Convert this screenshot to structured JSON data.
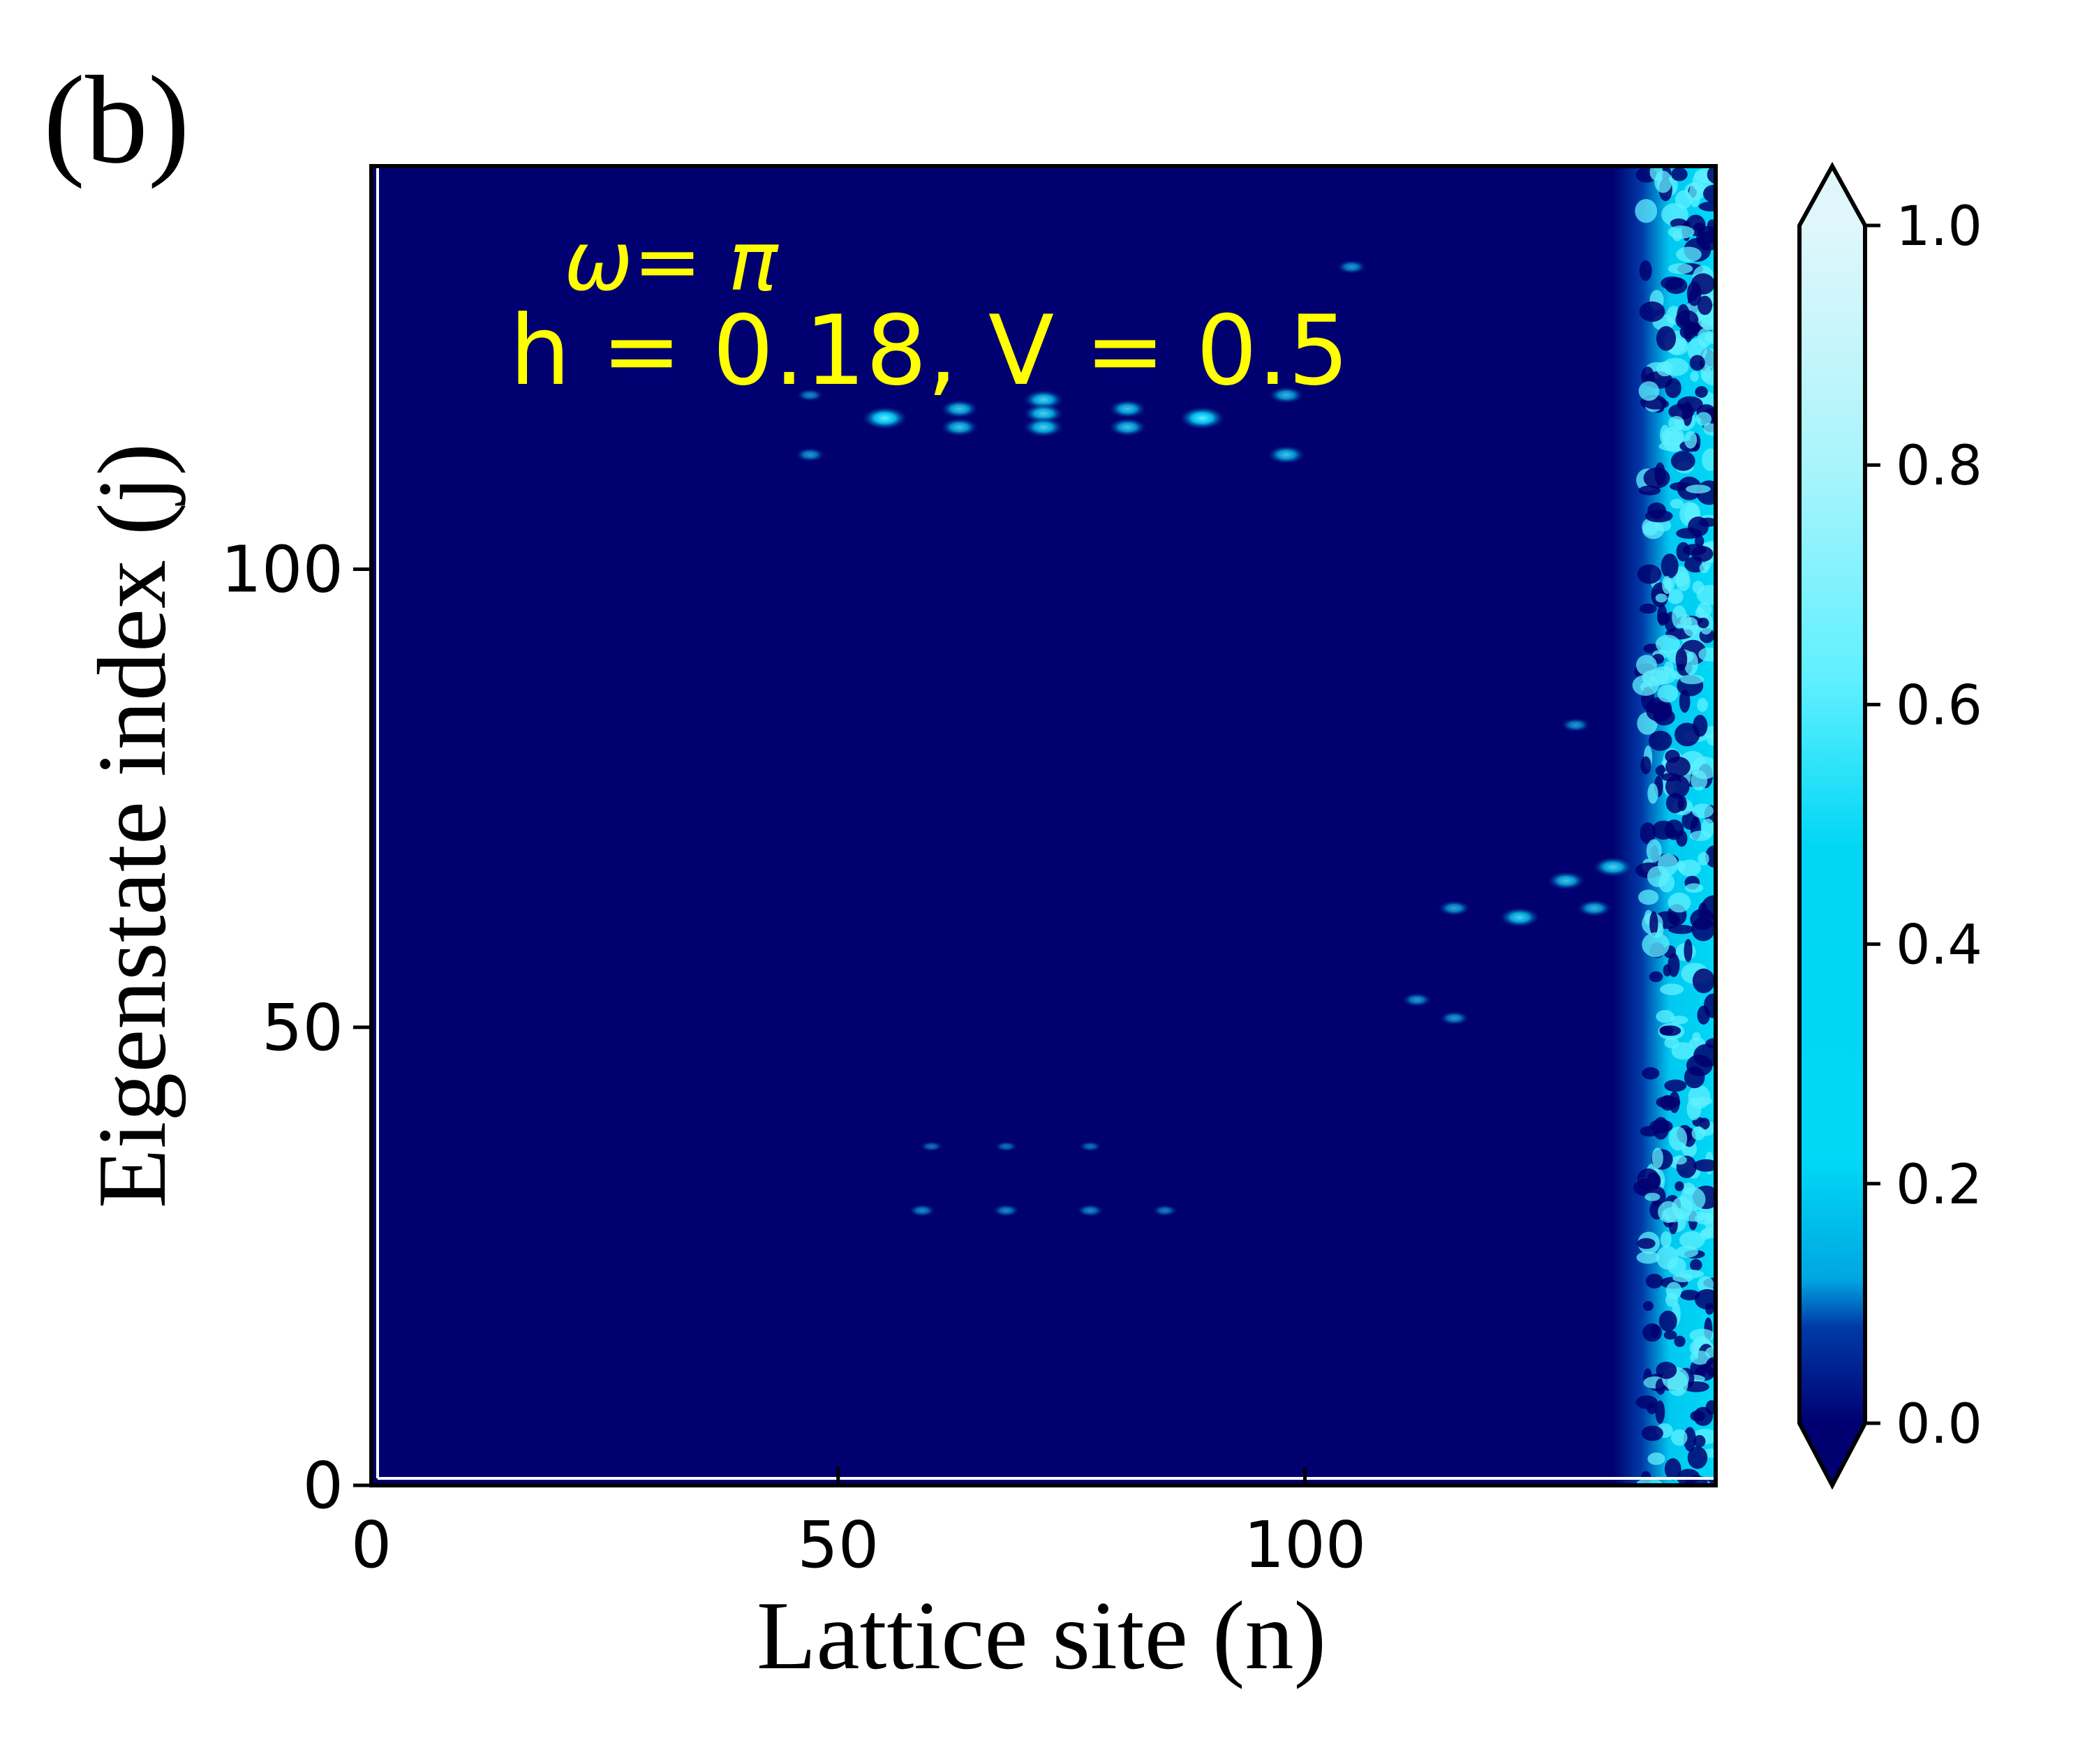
{
  "panel_label": "(b)",
  "annotations": {
    "omega_line": "ω= π",
    "params_line": "h = 0.18, V = 0.5"
  },
  "colors": {
    "background": "#000070",
    "annotation": "#ffff00",
    "cmap": [
      "#000070",
      "#003aa8",
      "#00a6e0",
      "#00d8f6",
      "#5ff0ff",
      "#dff7fb"
    ]
  },
  "chart_data": {
    "type": "heatmap",
    "xlabel": "Lattice site (n)",
    "ylabel": "Eigenstate index (j)",
    "xlim": [
      0,
      144
    ],
    "ylim": [
      0,
      144
    ],
    "xticks": [
      0,
      50,
      100
    ],
    "yticks": [
      0,
      50,
      100
    ],
    "colorbar": {
      "ticks": [
        0.0,
        0.2,
        0.4,
        0.6,
        0.8,
        1.0
      ],
      "tick_labels": [
        "0.0",
        "0.2",
        "0.4",
        "0.6",
        "0.8",
        "1.0"
      ],
      "extend": "both"
    },
    "edge_band": {
      "n_from": 133,
      "n_to": 144,
      "j_from": 0,
      "j_to": 144,
      "level": 0.45
    },
    "features": [
      {
        "n": 55,
        "j": 116.5,
        "value": 0.5
      },
      {
        "n": 63,
        "j": 117.5,
        "value": 0.35
      },
      {
        "n": 63,
        "j": 115.5,
        "value": 0.35
      },
      {
        "n": 72,
        "j": 118.5,
        "value": 0.4
      },
      {
        "n": 72,
        "j": 117,
        "value": 0.4
      },
      {
        "n": 72,
        "j": 115.5,
        "value": 0.4
      },
      {
        "n": 81,
        "j": 117.5,
        "value": 0.35
      },
      {
        "n": 81,
        "j": 115.5,
        "value": 0.35
      },
      {
        "n": 89,
        "j": 116.5,
        "value": 0.5
      },
      {
        "n": 98,
        "j": 119,
        "value": 0.3
      },
      {
        "n": 98,
        "j": 112.5,
        "value": 0.35
      },
      {
        "n": 47,
        "j": 112.5,
        "value": 0.2
      },
      {
        "n": 47,
        "j": 119,
        "value": 0.15
      },
      {
        "n": 105,
        "j": 133,
        "value": 0.2
      },
      {
        "n": 133,
        "j": 67.5,
        "value": 0.4
      },
      {
        "n": 128,
        "j": 66,
        "value": 0.35
      },
      {
        "n": 123,
        "j": 62,
        "value": 0.4
      },
      {
        "n": 116,
        "j": 63,
        "value": 0.25
      },
      {
        "n": 131,
        "j": 63,
        "value": 0.3
      },
      {
        "n": 129,
        "j": 83,
        "value": 0.2
      },
      {
        "n": 112,
        "j": 53,
        "value": 0.2
      },
      {
        "n": 116,
        "j": 51,
        "value": 0.2
      },
      {
        "n": 59,
        "j": 30,
        "value": 0.15
      },
      {
        "n": 68,
        "j": 30,
        "value": 0.15
      },
      {
        "n": 77,
        "j": 30,
        "value": 0.15
      },
      {
        "n": 85,
        "j": 30,
        "value": 0.12
      },
      {
        "n": 60,
        "j": 37,
        "value": 0.08
      },
      {
        "n": 68,
        "j": 37,
        "value": 0.08
      },
      {
        "n": 77,
        "j": 37,
        "value": 0.08
      }
    ]
  }
}
